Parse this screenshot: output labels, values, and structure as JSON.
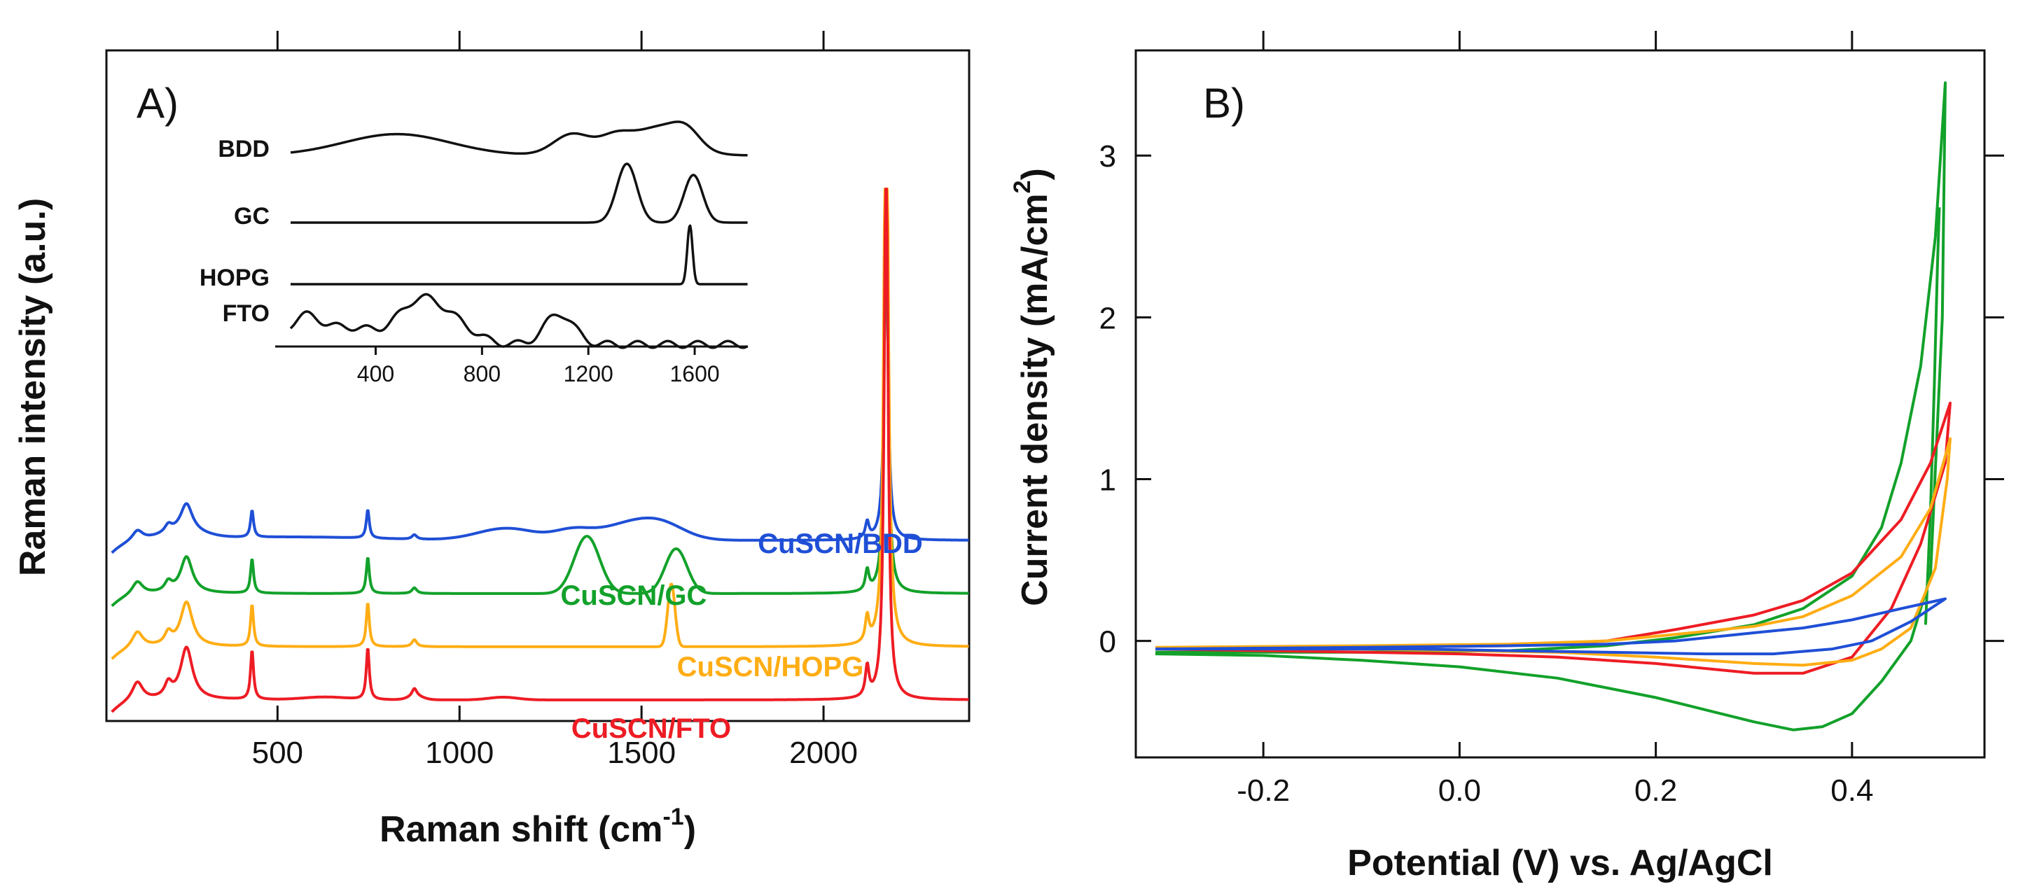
{
  "chart_data": [
    {
      "panel_label": "A)",
      "type": "line",
      "xlabel": "Raman shift (cm",
      "xlabel_sup": "-1",
      "xlabel_close": ")",
      "ylabel": "Raman intensity (a.u.)",
      "xlim": [
        30,
        2400
      ],
      "xticks": [
        500,
        1000,
        1500,
        2000
      ],
      "xtick_labels": [
        "500",
        "1000",
        "1500",
        "2000"
      ],
      "colors": {
        "blue": "#1f4fd6",
        "green": "#12a12a",
        "orange": "#ffad14",
        "red": "#ee1c24"
      },
      "series": [
        {
          "name": "CuSCN/BDD",
          "color": "#1f4fd6",
          "baseline": 3.0,
          "broad": [
            [
              1130,
              80,
              0.22
            ],
            [
              1310,
              50,
              0.16
            ],
            [
              1480,
              90,
              0.32
            ],
            [
              1560,
              60,
              0.15
            ],
            [
              240,
              60,
              0.12
            ],
            [
              550,
              220,
              0.06
            ]
          ],
          "peak_scale": 0.55,
          "main_peak": 6.0
        },
        {
          "name": "CuSCN/GC",
          "color": "#12a12a",
          "baseline": 2.0,
          "broad": [
            [
              1350,
              35,
              1.05
            ],
            [
              1595,
              30,
              0.82
            ]
          ],
          "peak_scale": 0.7,
          "main_peak": 7.5
        },
        {
          "name": "CuSCN/HOPG",
          "color": "#ffad14",
          "baseline": 1.0,
          "broad": [
            [
              1582,
              10,
              1.15
            ]
          ],
          "peak_scale": 0.85,
          "main_peak": 13.0
        },
        {
          "name": "CuSCN/FTO",
          "color": "#ee1c24",
          "baseline": 0.0,
          "broad": [
            [
              630,
              60,
              0.05
            ],
            [
              880,
              20,
              0.06
            ],
            [
              1120,
              40,
              0.05
            ]
          ],
          "peak_scale": 1.0,
          "main_peak": 10.5
        }
      ],
      "cuscn_peaks": [
        [
          115,
          18,
          0.35
        ],
        [
          200,
          12,
          0.25
        ],
        [
          250,
          20,
          0.95
        ],
        [
          430,
          5,
          0.9
        ],
        [
          748,
          5,
          0.95
        ],
        [
          876,
          8,
          0.15
        ],
        [
          2120,
          6,
          0.55
        ]
      ],
      "main_peak_position": 2172,
      "inset": {
        "xlim": [
          80,
          1800
        ],
        "xticks": [
          400,
          800,
          1200,
          1600
        ],
        "xtick_labels": [
          "400",
          "800",
          "1200",
          "1600"
        ],
        "series": [
          {
            "name": "BDD",
            "offset": 3.3,
            "components": [
              [
                480,
                200,
                0.38
              ],
              [
                1140,
                70,
                0.38
              ],
              [
                1300,
                60,
                0.28
              ],
              [
                1470,
                100,
                0.5
              ],
              [
                1570,
                50,
                0.25
              ]
            ]
          },
          {
            "name": "GC",
            "offset": 2.2,
            "components": [
              [
                1345,
                38,
                1.05
              ],
              [
                1595,
                35,
                0.85
              ]
            ]
          },
          {
            "name": "HOPG",
            "offset": 1.1,
            "components": [
              [
                1582,
                10,
                1.05
              ]
            ]
          },
          {
            "name": "FTO",
            "offset": 0.0,
            "components": [
              [
                130,
                60,
                0.45
              ],
              [
                560,
                80,
                0.72
              ],
              [
                690,
                80,
                0.35
              ],
              [
                1090,
                55,
                0.55
              ],
              [
                300,
                100,
                0.3
              ]
            ]
          }
        ]
      }
    },
    {
      "panel_label": "B)",
      "type": "line",
      "xlabel": "Potential (V) vs. Ag/AgCl",
      "ylabel": "Current density (mA/cm",
      "ylabel_sup": "2",
      "ylabel_close": ")",
      "xlim": [
        -0.33,
        0.535
      ],
      "ylim": [
        -0.72,
        3.65
      ],
      "xticks": [
        -0.2,
        0.0,
        0.2,
        0.4
      ],
      "xtick_labels": [
        "-0.2",
        "0.0",
        "0.2",
        "0.4"
      ],
      "yticks": [
        0,
        1,
        2,
        3
      ],
      "ytick_labels": [
        "0",
        "1",
        "2",
        "3"
      ],
      "series": [
        {
          "name": "green",
          "color": "#12a12a",
          "points": [
            [
              -0.31,
              -0.07
            ],
            [
              -0.1,
              -0.07
            ],
            [
              0.05,
              -0.06
            ],
            [
              0.15,
              -0.03
            ],
            [
              0.22,
              0.02
            ],
            [
              0.3,
              0.1
            ],
            [
              0.35,
              0.2
            ],
            [
              0.4,
              0.4
            ],
            [
              0.43,
              0.7
            ],
            [
              0.45,
              1.1
            ],
            [
              0.47,
              1.7
            ],
            [
              0.485,
              2.5
            ],
            [
              0.495,
              3.45
            ],
            [
              0.492,
              2.0
            ],
            [
              0.48,
              0.4
            ],
            [
              0.46,
              0.0
            ],
            [
              0.43,
              -0.25
            ],
            [
              0.4,
              -0.45
            ],
            [
              0.37,
              -0.53
            ],
            [
              0.34,
              -0.55
            ],
            [
              0.3,
              -0.5
            ],
            [
              0.2,
              -0.35
            ],
            [
              0.1,
              -0.23
            ],
            [
              0.0,
              -0.16
            ],
            [
              -0.1,
              -0.12
            ],
            [
              -0.2,
              -0.09
            ],
            [
              -0.31,
              -0.08
            ]
          ],
          "branch2": [
            [
              0.475,
              0.1
            ],
            [
              0.48,
              0.8
            ],
            [
              0.484,
              1.6
            ],
            [
              0.487,
              2.3
            ],
            [
              0.489,
              2.68
            ]
          ]
        },
        {
          "name": "red",
          "color": "#ee1c24",
          "points": [
            [
              -0.31,
              -0.05
            ],
            [
              -0.1,
              -0.04
            ],
            [
              0.05,
              -0.03
            ],
            [
              0.15,
              0.0
            ],
            [
              0.22,
              0.07
            ],
            [
              0.3,
              0.16
            ],
            [
              0.35,
              0.25
            ],
            [
              0.4,
              0.42
            ],
            [
              0.45,
              0.75
            ],
            [
              0.48,
              1.1
            ],
            [
              0.5,
              1.47
            ],
            [
              0.495,
              1.1
            ],
            [
              0.47,
              0.6
            ],
            [
              0.44,
              0.2
            ],
            [
              0.4,
              -0.1
            ],
            [
              0.35,
              -0.2
            ],
            [
              0.3,
              -0.2
            ],
            [
              0.2,
              -0.14
            ],
            [
              0.1,
              -0.1
            ],
            [
              0.0,
              -0.08
            ],
            [
              -0.1,
              -0.07
            ],
            [
              -0.2,
              -0.06
            ],
            [
              -0.31,
              -0.05
            ]
          ]
        },
        {
          "name": "orange",
          "color": "#ffad14",
          "points": [
            [
              -0.31,
              -0.04
            ],
            [
              -0.1,
              -0.03
            ],
            [
              0.05,
              -0.02
            ],
            [
              0.15,
              0.0
            ],
            [
              0.22,
              0.04
            ],
            [
              0.3,
              0.09
            ],
            [
              0.35,
              0.15
            ],
            [
              0.4,
              0.28
            ],
            [
              0.45,
              0.52
            ],
            [
              0.48,
              0.82
            ],
            [
              0.5,
              1.25
            ],
            [
              0.497,
              1.0
            ],
            [
              0.485,
              0.45
            ],
            [
              0.46,
              0.08
            ],
            [
              0.43,
              -0.05
            ],
            [
              0.4,
              -0.12
            ],
            [
              0.35,
              -0.15
            ],
            [
              0.3,
              -0.14
            ],
            [
              0.2,
              -0.1
            ],
            [
              0.1,
              -0.07
            ],
            [
              0.0,
              -0.06
            ],
            [
              -0.1,
              -0.05
            ],
            [
              -0.2,
              -0.05
            ],
            [
              -0.31,
              -0.04
            ]
          ]
        },
        {
          "name": "blue",
          "color": "#1f4fd6",
          "points": [
            [
              -0.31,
              -0.05
            ],
            [
              -0.1,
              -0.04
            ],
            [
              0.05,
              -0.03
            ],
            [
              0.15,
              -0.02
            ],
            [
              0.22,
              0.0
            ],
            [
              0.3,
              0.05
            ],
            [
              0.35,
              0.08
            ],
            [
              0.4,
              0.13
            ],
            [
              0.45,
              0.2
            ],
            [
              0.495,
              0.26
            ],
            [
              0.46,
              0.12
            ],
            [
              0.42,
              0.0
            ],
            [
              0.38,
              -0.05
            ],
            [
              0.32,
              -0.08
            ],
            [
              0.25,
              -0.08
            ],
            [
              0.15,
              -0.07
            ],
            [
              0.05,
              -0.06
            ],
            [
              -0.05,
              -0.05
            ],
            [
              -0.2,
              -0.05
            ],
            [
              -0.31,
              -0.05
            ]
          ]
        }
      ]
    }
  ]
}
